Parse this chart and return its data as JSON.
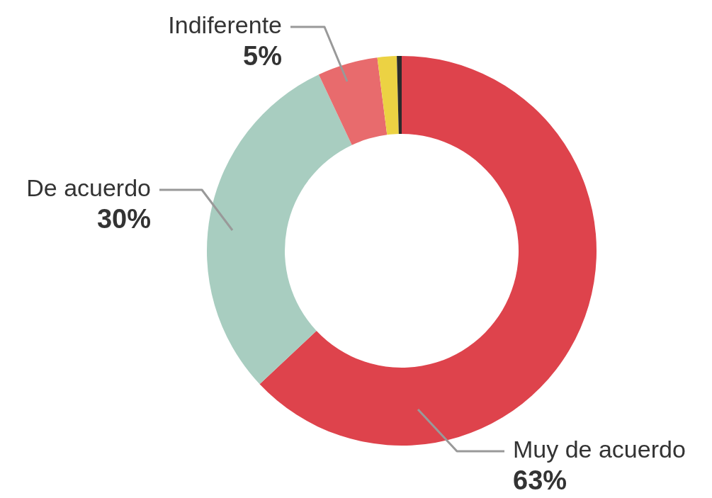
{
  "chart_data": {
    "type": "donut",
    "categories": [
      "Muy de acuerdo",
      "De acuerdo",
      "Indiferente",
      null,
      null
    ],
    "values": [
      63,
      30,
      5,
      1.6,
      0.4
    ],
    "colors": [
      "#de434c",
      "#a8cdc0",
      "#e86b6d",
      "#ecd243",
      "#2b2b2b"
    ],
    "value_labels": [
      "63%",
      "30%",
      "5%",
      null,
      null
    ],
    "legend": false
  }
}
